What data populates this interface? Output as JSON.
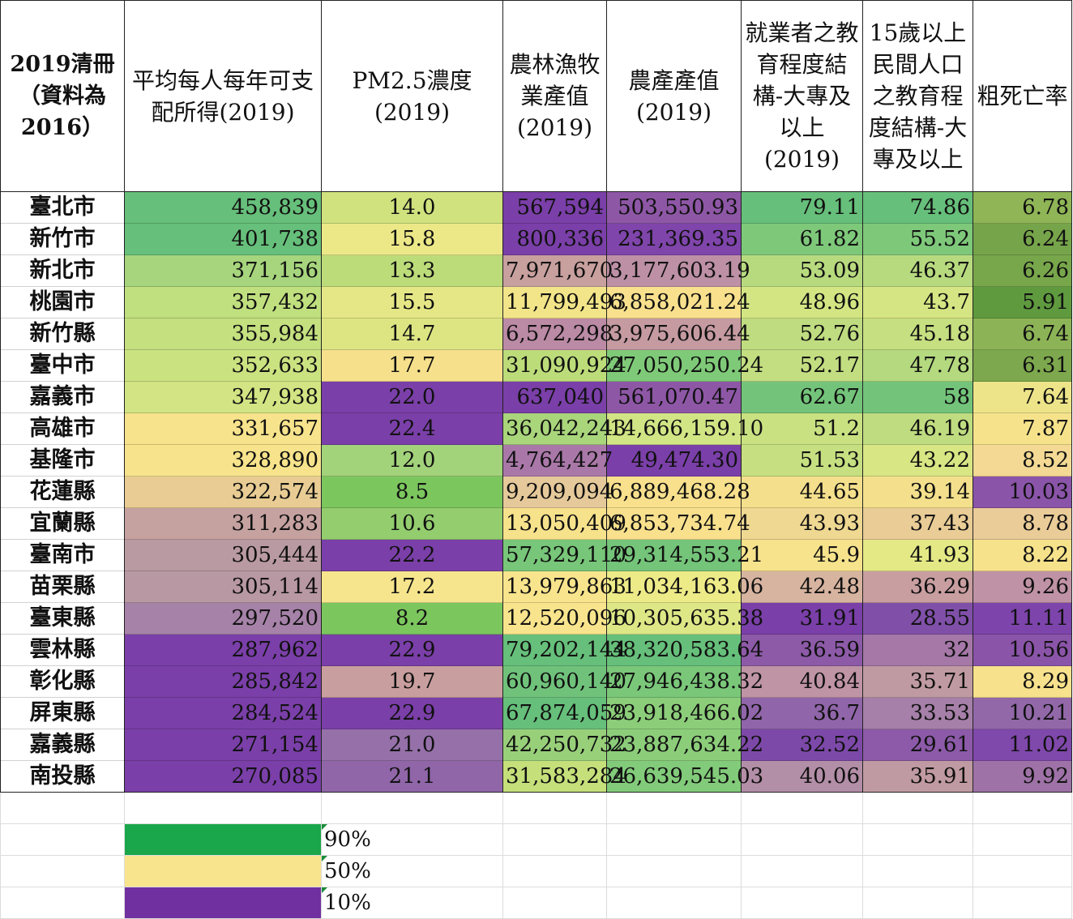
{
  "headers": [
    "2019清冊（資料為2016）",
    "平均每人每年可支配所得(2019)",
    "PM2.5濃度(2019)",
    "農林漁牧業產值(2019)",
    "農產產值(2019)",
    "就業者之教育程度結構-大專及以上(2019)",
    "15歲以上民間人口之教育程度結構-大專及以上",
    "粗死亡率"
  ],
  "rows": [
    {
      "cells": [
        "臺北市",
        "458,839",
        "14.0",
        "567,594",
        "503,550.93",
        "79.11",
        "74.86",
        "6.78"
      ],
      "colors": [
        "#ffffff",
        "#66bf7a",
        "#cfe27e",
        "#7a3fa8",
        "#8e57a6",
        "#66bf7a",
        "#66bf7a",
        "#8fb556"
      ]
    },
    {
      "cells": [
        "新竹市",
        "401,738",
        "15.8",
        "800,336",
        "231,369.35",
        "61.82",
        "55.52",
        "6.24"
      ],
      "colors": [
        "#ffffff",
        "#66bf7a",
        "#ece888",
        "#7a3fa8",
        "#7f45ab",
        "#7ec87a",
        "#7ec87a",
        "#76a44a"
      ]
    },
    {
      "cells": [
        "新北市",
        "371,156",
        "13.3",
        "7,971,670",
        "3,177,603.19",
        "53.09",
        "46.37",
        "6.26"
      ],
      "colors": [
        "#ffffff",
        "#a6d57d",
        "#bcdc7a",
        "#c8a09e",
        "#bd90a5",
        "#b8da7f",
        "#b8da7f",
        "#78a64b"
      ]
    },
    {
      "cells": [
        "桃園市",
        "357,432",
        "15.5",
        "11,799,493",
        "6,858,021.24",
        "48.96",
        "43.7",
        "5.91"
      ],
      "colors": [
        "#ffffff",
        "#c0df7e",
        "#e5e786",
        "#f2e488",
        "#f8e08d",
        "#d3e583",
        "#d6e583",
        "#5f9a3f"
      ]
    },
    {
      "cells": [
        "新竹縣",
        "355,984",
        "14.7",
        "6,572,298",
        "3,975,606.44",
        "52.76",
        "45.18",
        "6.74"
      ],
      "colors": [
        "#ffffff",
        "#c4e07f",
        "#dde583",
        "#bb8aa5",
        "#c59aa1",
        "#bfdc80",
        "#c6df81",
        "#8cb356"
      ]
    },
    {
      "cells": [
        "臺中市",
        "352,633",
        "17.7",
        "31,090,924",
        "27,050,250.24",
        "52.17",
        "47.78",
        "6.31"
      ],
      "colors": [
        "#ffffff",
        "#cbe281",
        "#f6e08b",
        "#bcdc7a",
        "#7fca78",
        "#c3de81",
        "#b4d97f",
        "#7da84d"
      ]
    },
    {
      "cells": [
        "嘉義市",
        "347,938",
        "22.0",
        "637,040",
        "561,070.47",
        "62.67",
        "58",
        "7.64"
      ],
      "colors": [
        "#ffffff",
        "#d2e483",
        "#7a3fa8",
        "#7a3fa8",
        "#8e57a6",
        "#73c47a",
        "#73c47a",
        "#ede489"
      ]
    },
    {
      "cells": [
        "高雄市",
        "331,657",
        "22.4",
        "36,042,243",
        "14,666,159.10",
        "51.2",
        "46.19",
        "7.87"
      ],
      "colors": [
        "#ffffff",
        "#f7e38c",
        "#7a3fa8",
        "#a9d57b",
        "#d2e585",
        "#cae182",
        "#bfdc80",
        "#f6e28b"
      ]
    },
    {
      "cells": [
        "基隆市",
        "328,890",
        "12.0",
        "4,764,427",
        "49,474.30",
        "51.53",
        "43.22",
        "8.52"
      ],
      "colors": [
        "#ffffff",
        "#f6e38b",
        "#a2d27a",
        "#a978a8",
        "#7a3fa8",
        "#c6df81",
        "#d9e684",
        "#f3d994"
      ]
    },
    {
      "cells": [
        "花蓮縣",
        "322,574",
        "8.5",
        "9,209,094",
        "6,889,468.28",
        "44.65",
        "39.14",
        "10.03"
      ],
      "colors": [
        "#ffffff",
        "#e8cc93",
        "#7cc65e",
        "#e6c99a",
        "#f8e08d",
        "#f4df8c",
        "#f4e08c",
        "#8a54a8"
      ]
    },
    {
      "cells": [
        "宜蘭縣",
        "311,283",
        "10.6",
        "13,050,409",
        "6,853,734.74",
        "43.93",
        "37.43",
        "8.78"
      ],
      "colors": [
        "#ffffff",
        "#c5a2a0",
        "#93cd6e",
        "#f7e28c",
        "#f8e08d",
        "#efd892",
        "#e9cc96",
        "#eacc98"
      ]
    },
    {
      "cells": [
        "臺南市",
        "305,444",
        "22.2",
        "57,329,110",
        "29,314,553.21",
        "45.9",
        "41.93",
        "8.22"
      ],
      "colors": [
        "#ffffff",
        "#b99aa3",
        "#7a3fa8",
        "#78c679",
        "#74c479",
        "#f6e38c",
        "#e4e986",
        "#f6e28b"
      ]
    },
    {
      "cells": [
        "苗栗縣",
        "305,114",
        "17.2",
        "13,979,863",
        "11,034,163.06",
        "42.48",
        "36.29",
        "9.26"
      ],
      "colors": [
        "#ffffff",
        "#b898a3",
        "#f6e58d",
        "#f8e48c",
        "#edea88",
        "#d7b4a0",
        "#c99ea1",
        "#bf92a5"
      ]
    },
    {
      "cells": [
        "臺東縣",
        "297,520",
        "8.2",
        "12,520,096",
        "10,305,635.38",
        "31.91",
        "28.55",
        "11.11"
      ],
      "colors": [
        "#ffffff",
        "#a682a8",
        "#7cc65e",
        "#f8e48c",
        "#dee786",
        "#7a3fa8",
        "#8050a9",
        "#7d45ab"
      ]
    },
    {
      "cells": [
        "雲林縣",
        "287,962",
        "22.9",
        "79,202,144",
        "38,320,583.64",
        "36.59",
        "32",
        "10.56"
      ],
      "colors": [
        "#ffffff",
        "#7a3fa8",
        "#7a3fa8",
        "#66bf7a",
        "#66bf7a",
        "#8d5aa8",
        "#a578a8",
        "#8a54a8"
      ]
    },
    {
      "cells": [
        "彰化縣",
        "285,842",
        "19.7",
        "60,960,140",
        "27,946,438.32",
        "40.84",
        "35.71",
        "8.29"
      ],
      "colors": [
        "#ffffff",
        "#7a3fa8",
        "#c99e9e",
        "#70c27b",
        "#7ac779",
        "#bf94a5",
        "#c09aa2",
        "#f7e18c"
      ]
    },
    {
      "cells": [
        "屏東縣",
        "284,524",
        "22.9",
        "67,874,059",
        "23,918,466.02",
        "36.7",
        "33.53",
        "10.21"
      ],
      "colors": [
        "#ffffff",
        "#7a3fa8",
        "#7a3fa8",
        "#66bf7a",
        "#8ccd7a",
        "#9065a9",
        "#a680a8",
        "#9268a9"
      ]
    },
    {
      "cells": [
        "嘉義縣",
        "271,154",
        "21.0",
        "42,250,732",
        "23,887,634.22",
        "32.52",
        "29.61",
        "11.02"
      ],
      "colors": [
        "#ffffff",
        "#7a3fa8",
        "#9570a9",
        "#98d07a",
        "#8ccd7a",
        "#7d49a9",
        "#8c5aa8",
        "#7f48ab"
      ]
    },
    {
      "cells": [
        "南投縣",
        "270,085",
        "21.1",
        "31,583,284",
        "26,639,545.03",
        "40.06",
        "35.91",
        "9.92"
      ],
      "colors": [
        "#ffffff",
        "#7a3fa8",
        "#9066a9",
        "#c5df7a",
        "#82cb7a",
        "#b38ea7",
        "#c09aa2",
        "#9e72a7"
      ]
    }
  ],
  "legend": [
    {
      "label": "90%",
      "color": "#1aa64a"
    },
    {
      "label": "50%",
      "color": "#f8e48c"
    },
    {
      "label": "10%",
      "color": "#7030a0"
    }
  ]
}
